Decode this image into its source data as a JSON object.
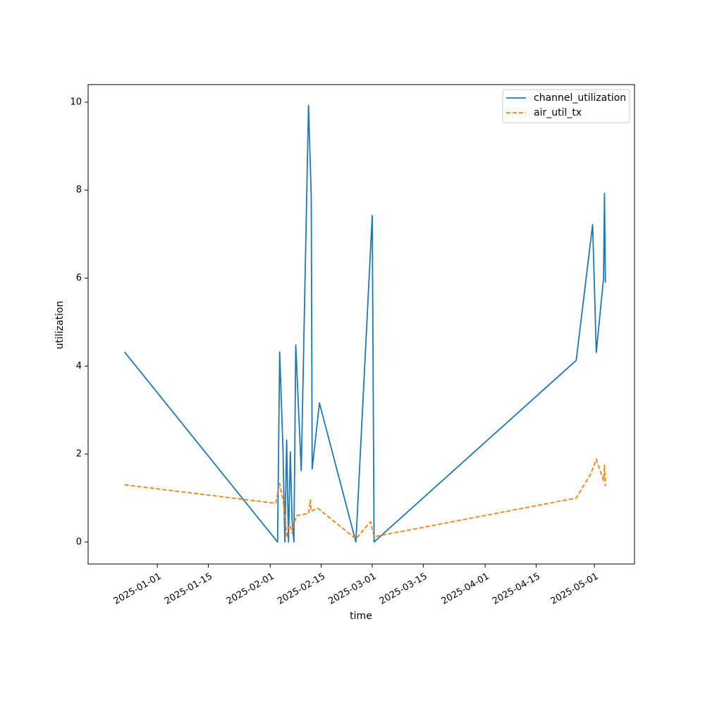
{
  "chart_data": {
    "type": "line",
    "title": "",
    "xlabel": "time",
    "ylabel": "utilization",
    "x_tick_labels": [
      "2025-01-01",
      "2025-01-15",
      "2025-02-01",
      "2025-02-15",
      "2025-03-01",
      "2025-03-15",
      "2025-04-01",
      "2025-04-15",
      "2025-05-01"
    ],
    "y_tick_labels": [
      "0",
      "2",
      "4",
      "6",
      "8",
      "10"
    ],
    "xlim": [
      "2024-12-13",
      "2025-05-12"
    ],
    "ylim": [
      -0.5,
      10.4
    ],
    "grid": false,
    "legend_position": "top-right",
    "series": [
      {
        "name": "channel_utilization",
        "color": "#1f77b4",
        "style": "solid",
        "points": [
          [
            "2024-12-23T00:00",
            4.32
          ],
          [
            "2025-02-03T00:00",
            0.0
          ],
          [
            "2025-02-03T14:00",
            4.32
          ],
          [
            "2025-02-04T12:00",
            2.1
          ],
          [
            "2025-02-05T00:00",
            0.0
          ],
          [
            "2025-02-05T12:00",
            2.32
          ],
          [
            "2025-02-06T00:00",
            0.0
          ],
          [
            "2025-02-06T12:00",
            2.05
          ],
          [
            "2025-02-07T00:00",
            0.5
          ],
          [
            "2025-02-07T12:00",
            0.0
          ],
          [
            "2025-02-08T00:00",
            4.48
          ],
          [
            "2025-02-09T12:00",
            1.62
          ],
          [
            "2025-02-11T12:00",
            9.93
          ],
          [
            "2025-02-12T06:00",
            7.85
          ],
          [
            "2025-02-12T12:00",
            1.66
          ],
          [
            "2025-02-14T12:00",
            3.16
          ],
          [
            "2025-02-24T12:00",
            0.0
          ],
          [
            "2025-03-01T00:00",
            7.42
          ],
          [
            "2025-03-01T12:00",
            0.0
          ],
          [
            "2025-04-26T00:00",
            4.13
          ],
          [
            "2025-04-30T12:00",
            7.22
          ],
          [
            "2025-05-01T12:00",
            4.31
          ],
          [
            "2025-05-03T12:00",
            6.0
          ],
          [
            "2025-05-03T18:00",
            7.93
          ],
          [
            "2025-05-04T00:00",
            5.9
          ]
        ]
      },
      {
        "name": "air_util_tx",
        "color": "#ff7f0e",
        "style": "dashed",
        "points": [
          [
            "2024-12-23T00:00",
            1.3
          ],
          [
            "2025-02-02T12:00",
            0.88
          ],
          [
            "2025-02-03T14:00",
            1.33
          ],
          [
            "2025-02-04T12:00",
            0.95
          ],
          [
            "2025-02-05T06:00",
            0.42
          ],
          [
            "2025-02-05T12:00",
            0.1
          ],
          [
            "2025-02-06T06:00",
            0.46
          ],
          [
            "2025-02-07T00:00",
            0.2
          ],
          [
            "2025-02-07T12:00",
            0.42
          ],
          [
            "2025-02-08T06:00",
            0.6
          ],
          [
            "2025-02-11T12:00",
            0.65
          ],
          [
            "2025-02-12T00:00",
            0.96
          ],
          [
            "2025-02-12T06:00",
            0.7
          ],
          [
            "2025-02-14T00:00",
            0.77
          ],
          [
            "2025-02-24T12:00",
            0.07
          ],
          [
            "2025-02-28T12:00",
            0.46
          ],
          [
            "2025-03-01T12:00",
            0.12
          ],
          [
            "2025-04-26T00:00",
            1.0
          ],
          [
            "2025-04-30T00:00",
            1.55
          ],
          [
            "2025-05-01T12:00",
            1.88
          ],
          [
            "2025-05-03T12:00",
            1.4
          ],
          [
            "2025-05-03T18:00",
            1.75
          ],
          [
            "2025-05-04T00:00",
            1.27
          ]
        ]
      }
    ]
  }
}
